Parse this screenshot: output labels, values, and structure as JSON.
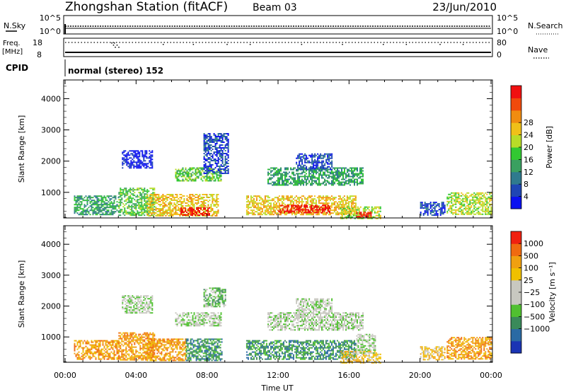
{
  "header": {
    "station": "Zhongshan Station (fitACF)",
    "beam": "Beam 03",
    "date": "23/Jun/2010"
  },
  "top_panels": {
    "nsky": {
      "label": "N.Sky",
      "left_ticks": [
        "10^5",
        "10^0"
      ],
      "right_ticks": [
        "10^5",
        "10^0"
      ],
      "right_label": "N.Search"
    },
    "freq": {
      "label_line1": "Freq.",
      "label_line2": "[MHz]",
      "left_ticks": [
        "18",
        "8"
      ],
      "right_ticks": [
        "80",
        "0"
      ],
      "right_label": "Nave"
    },
    "cpid": {
      "label": "CPID",
      "text": "normal (stereo) 152"
    }
  },
  "chart_data": [
    {
      "type": "heatmap",
      "ylabel": "Slant Range [km]",
      "ylim": [
        180,
        4600
      ],
      "yticks": [
        1000,
        2000,
        3000,
        4000
      ],
      "xlim": [
        0,
        24
      ],
      "colorbar": {
        "label": "Power [dB]",
        "ticks": [
          "4",
          "8",
          "12",
          "16",
          "20",
          "24",
          "28"
        ],
        "colors": [
          "#0a10f0",
          "#1f46b4",
          "#2f7a8e",
          "#3aa060",
          "#32c832",
          "#b8dc28",
          "#f0c018",
          "#f08c10",
          "#f04a0c",
          "#f01010"
        ]
      },
      "regions": [
        {
          "t": [
            0.5,
            3.0
          ],
          "r": [
            300,
            900
          ],
          "lvl": 3
        },
        {
          "t": [
            3.0,
            5.0
          ],
          "r": [
            250,
            1150
          ],
          "lvl": 4
        },
        {
          "t": [
            4.6,
            8.6
          ],
          "r": [
            230,
            950
          ],
          "lvl": 6
        },
        {
          "t": [
            6.5,
            8.1
          ],
          "r": [
            250,
            520
          ],
          "lvl": 9
        },
        {
          "t": [
            6.2,
            8.8
          ],
          "r": [
            1350,
            1800
          ],
          "lvl": 4
        },
        {
          "t": [
            7.8,
            9.2
          ],
          "r": [
            1600,
            2900
          ],
          "lvl": 1
        },
        {
          "t": [
            3.2,
            4.9
          ],
          "r": [
            1800,
            2350
          ],
          "lvl": 0
        },
        {
          "t": [
            10.2,
            16.4
          ],
          "r": [
            300,
            900
          ],
          "lvl": 6
        },
        {
          "t": [
            12.0,
            14.9
          ],
          "r": [
            330,
            600
          ],
          "lvl": 9
        },
        {
          "t": [
            11.4,
            16.8
          ],
          "r": [
            1250,
            1800
          ],
          "lvl": 3
        },
        {
          "t": [
            13.0,
            15.0
          ],
          "r": [
            1750,
            2250
          ],
          "lvl": 1
        },
        {
          "t": [
            15.5,
            17.8
          ],
          "r": [
            180,
            550
          ],
          "lvl": 5
        },
        {
          "t": [
            16.4,
            17.2
          ],
          "r": [
            200,
            380
          ],
          "lvl": 9
        },
        {
          "t": [
            21.5,
            24.0
          ],
          "r": [
            300,
            1000
          ],
          "lvl": 5
        },
        {
          "t": [
            20.0,
            21.4
          ],
          "r": [
            250,
            700
          ],
          "lvl": 1
        }
      ]
    },
    {
      "type": "heatmap",
      "ylabel": "Slant Range [km]",
      "ylim": [
        180,
        4600
      ],
      "yticks": [
        1000,
        2000,
        3000,
        4000
      ],
      "xlim": [
        0,
        24
      ],
      "xticks": [
        "00:00",
        "04:00",
        "08:00",
        "12:00",
        "16:00",
        "20:00",
        "00:00"
      ],
      "xlabel": "Time UT",
      "colorbar": {
        "label": "Velocity [m s⁻¹]",
        "ticks": [
          "1000",
          "500",
          "100",
          "25",
          "−25",
          "−100",
          "−500",
          "−1000"
        ],
        "colors": [
          "#1a34b4",
          "#2a6aa4",
          "#3a8a5a",
          "#50c030",
          "#c8c8c0",
          "#c8c8c0",
          "#f0c000",
          "#f0a010",
          "#f06a10",
          "#f02010"
        ]
      },
      "regions": [
        {
          "t": [
            0.5,
            3.0
          ],
          "r": [
            300,
            900
          ],
          "lvl": 7
        },
        {
          "t": [
            3.0,
            5.0
          ],
          "r": [
            250,
            1150
          ],
          "lvl": 7
        },
        {
          "t": [
            4.6,
            6.8
          ],
          "r": [
            230,
            950
          ],
          "lvl": 7
        },
        {
          "t": [
            6.8,
            8.8
          ],
          "r": [
            250,
            950
          ],
          "lvl": 2
        },
        {
          "t": [
            6.2,
            8.8
          ],
          "r": [
            1350,
            1800
          ],
          "lvl": 4
        },
        {
          "t": [
            7.8,
            9.0
          ],
          "r": [
            2000,
            2600
          ],
          "lvl": 3
        },
        {
          "t": [
            3.2,
            4.9
          ],
          "r": [
            1800,
            2350
          ],
          "lvl": 4
        },
        {
          "t": [
            10.2,
            16.4
          ],
          "r": [
            300,
            900
          ],
          "lvl": 2
        },
        {
          "t": [
            11.4,
            16.8
          ],
          "r": [
            1250,
            1800
          ],
          "lvl": 4
        },
        {
          "t": [
            13.0,
            15.0
          ],
          "r": [
            1750,
            2250
          ],
          "lvl": 4
        },
        {
          "t": [
            15.5,
            17.8
          ],
          "r": [
            180,
            550
          ],
          "lvl": 6
        },
        {
          "t": [
            16.4,
            17.5
          ],
          "r": [
            500,
            1100
          ],
          "lvl": 4
        },
        {
          "t": [
            21.5,
            24.0
          ],
          "r": [
            300,
            1000
          ],
          "lvl": 7
        },
        {
          "t": [
            20.0,
            21.4
          ],
          "r": [
            250,
            700
          ],
          "lvl": 6
        }
      ]
    }
  ]
}
